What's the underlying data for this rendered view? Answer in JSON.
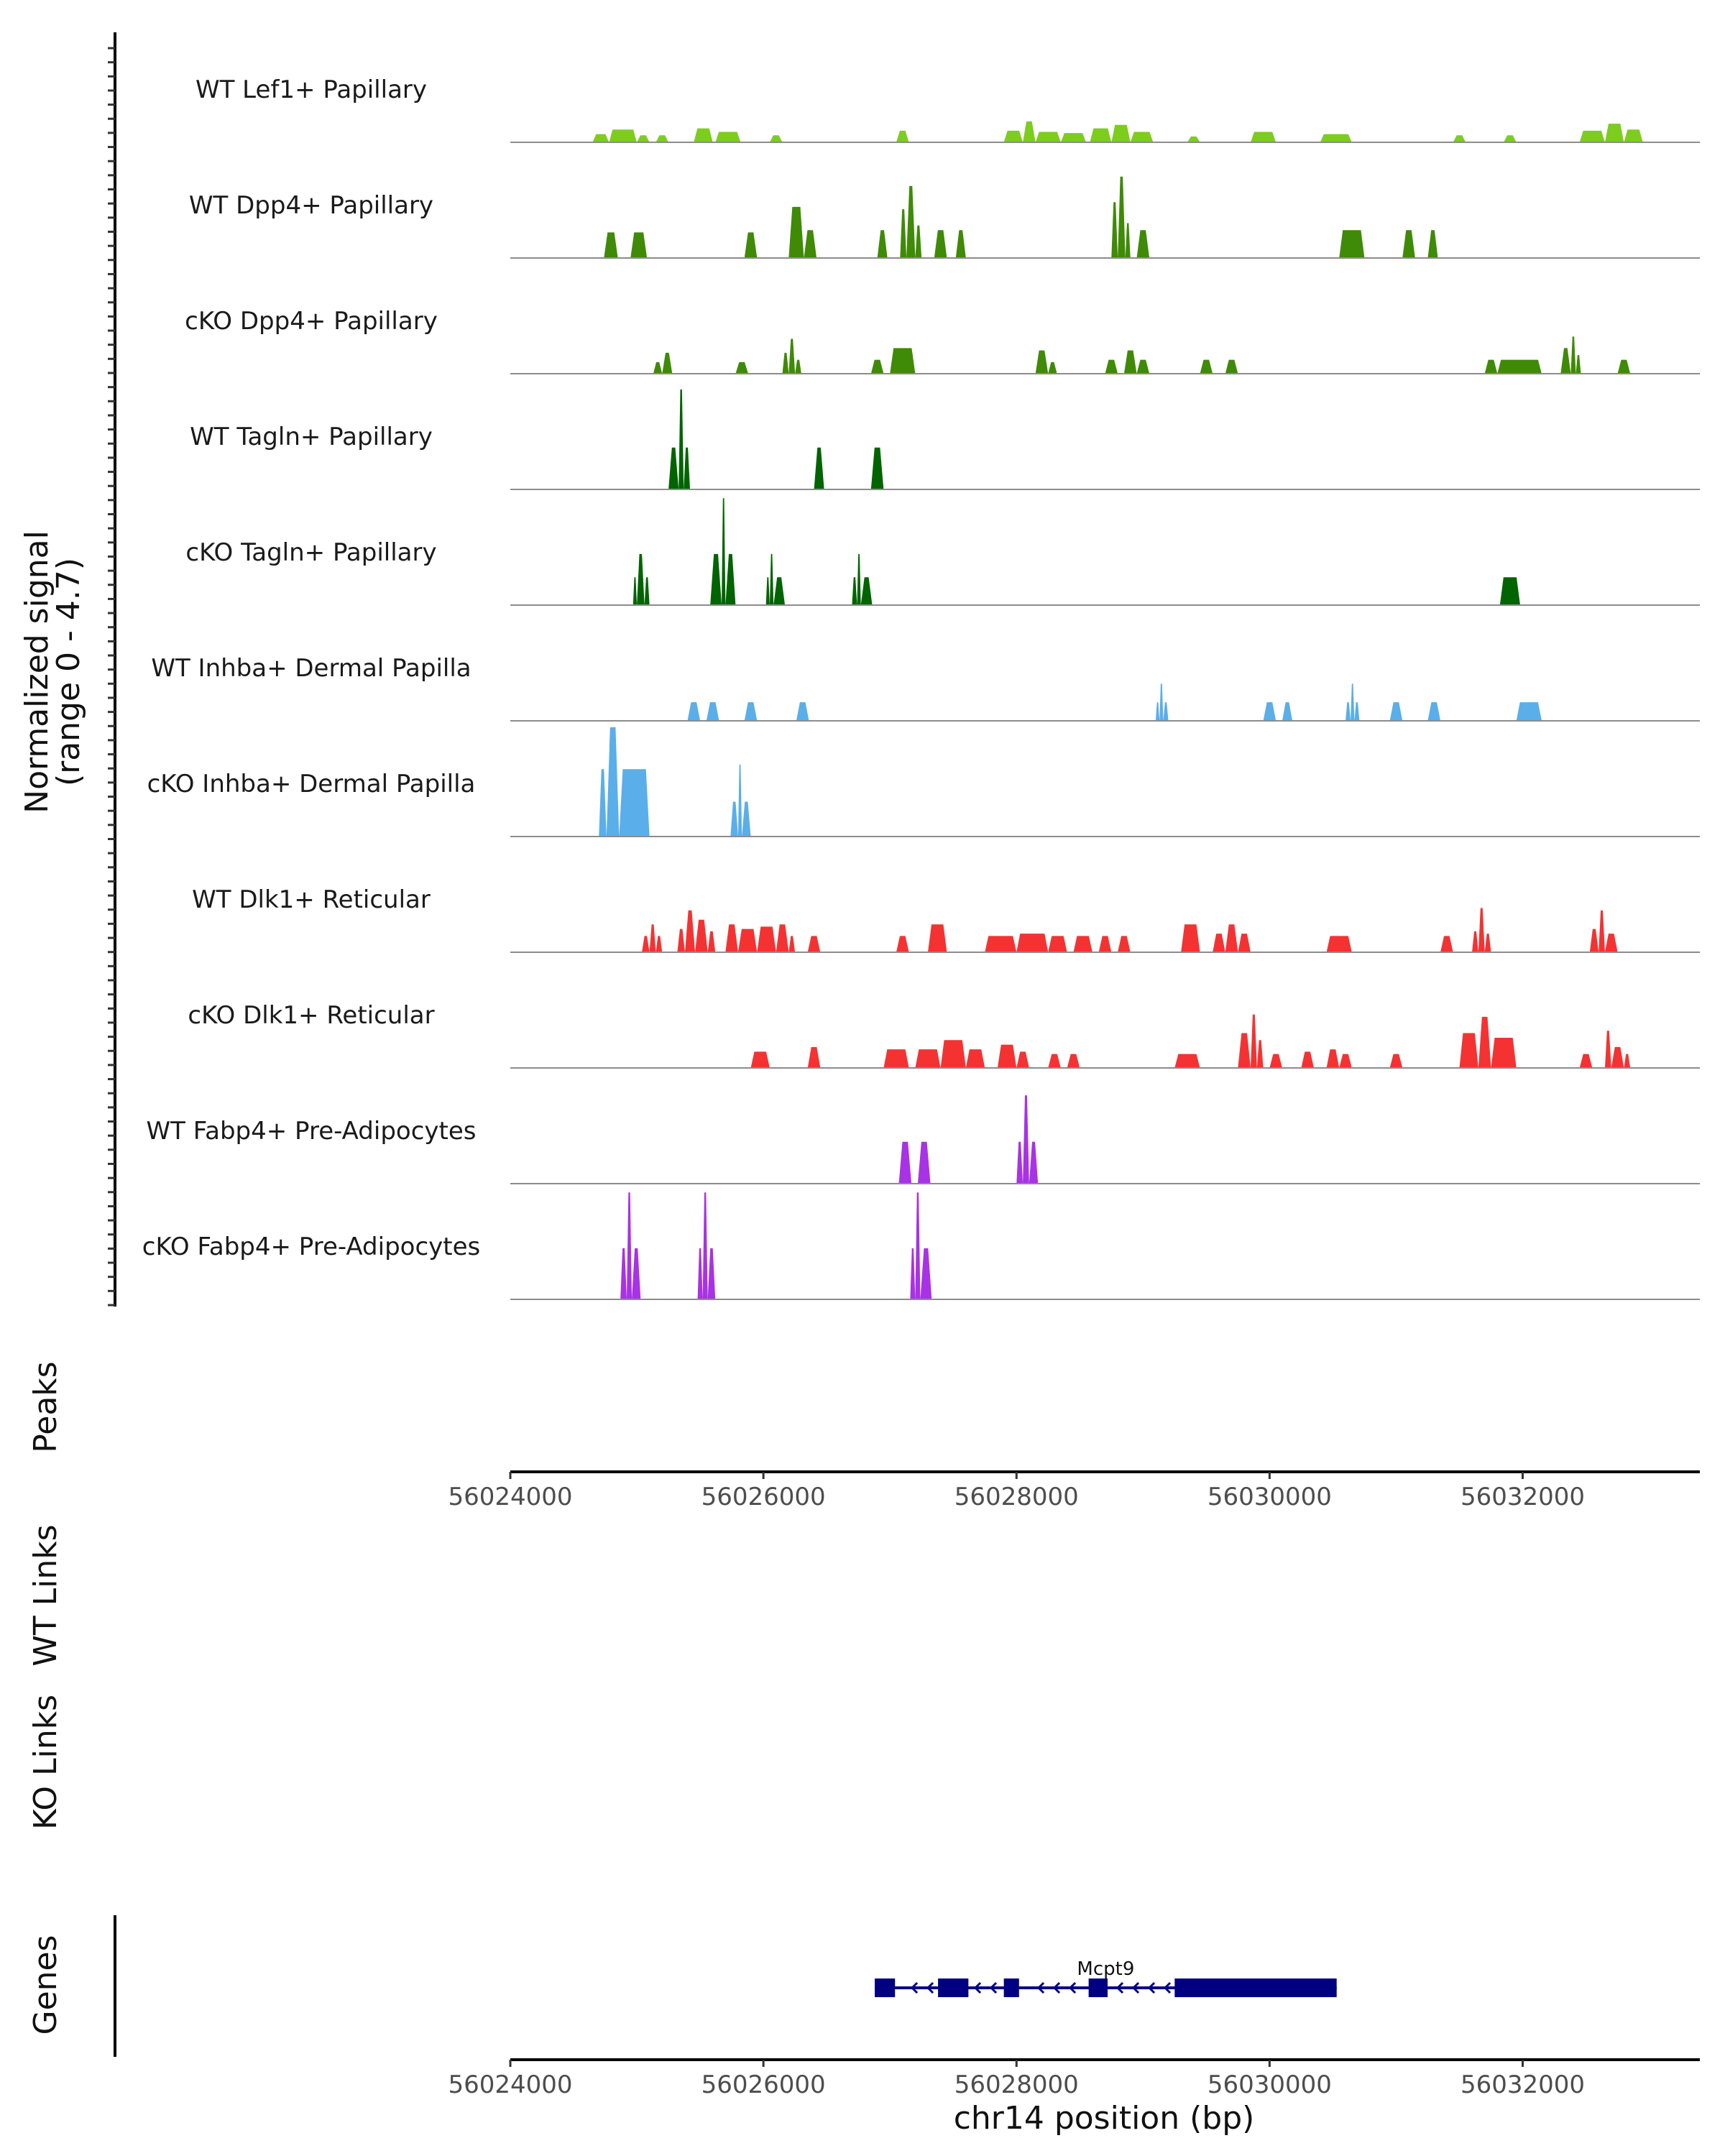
{
  "chart_data": {
    "type": "coverage",
    "region": {
      "chrom": "chr14",
      "start": 56024000,
      "end": 56033400
    },
    "ylabel": "Normalized signal",
    "ylabel_range": "(range 0 - 4.7)",
    "ymax": 4.7,
    "xlabel": "chr14 position (bp)",
    "xticks": [
      56024000,
      56026000,
      56028000,
      56030000,
      56032000
    ],
    "xtick_labels": [
      "56024000",
      "56026000",
      "56028000",
      "56030000",
      "56032000"
    ],
    "panel_labels": {
      "peaks": "Peaks",
      "wt_links": "WT Links",
      "ko_links": "KO Links",
      "genes": "Genes"
    },
    "tracks": [
      {
        "name": "WT Lef1+ Papillary",
        "color": "#7CCD1E",
        "peaks": [
          [
            56024650,
            56024780,
            0.35
          ],
          [
            56024780,
            56025000,
            0.55
          ],
          [
            56025000,
            56025100,
            0.3
          ],
          [
            56025150,
            56025250,
            0.3
          ],
          [
            56025450,
            56025600,
            0.6
          ],
          [
            56025620,
            56025820,
            0.45
          ],
          [
            56026050,
            56026150,
            0.3
          ],
          [
            56027050,
            56027150,
            0.5
          ],
          [
            56027900,
            56028050,
            0.5
          ],
          [
            56028050,
            56028150,
            0.9
          ],
          [
            56028150,
            56028350,
            0.45
          ],
          [
            56028350,
            56028550,
            0.4
          ],
          [
            56028580,
            56028750,
            0.6
          ],
          [
            56028750,
            56028900,
            0.75
          ],
          [
            56028900,
            56029080,
            0.45
          ],
          [
            56029350,
            56029450,
            0.25
          ],
          [
            56029850,
            56030050,
            0.45
          ],
          [
            56030400,
            56030650,
            0.35
          ],
          [
            56031450,
            56031550,
            0.3
          ],
          [
            56031850,
            56031950,
            0.3
          ],
          [
            56032450,
            56032650,
            0.5
          ],
          [
            56032650,
            56032800,
            0.8
          ],
          [
            56032800,
            56032950,
            0.55
          ]
        ]
      },
      {
        "name": "WT Dpp4+ Papillary",
        "color": "#3F8A06",
        "peaks": [
          [
            56024740,
            56024850,
            1.1
          ],
          [
            56024950,
            56025080,
            1.1
          ],
          [
            56025850,
            56025950,
            1.1
          ],
          [
            56026200,
            56026320,
            2.2
          ],
          [
            56026320,
            56026420,
            1.2
          ],
          [
            56026900,
            56026980,
            1.2
          ],
          [
            56027080,
            56027130,
            2.1
          ],
          [
            56027130,
            56027200,
            3.1
          ],
          [
            56027200,
            56027250,
            1.4
          ],
          [
            56027350,
            56027450,
            1.2
          ],
          [
            56027520,
            56027600,
            1.2
          ],
          [
            56028750,
            56028800,
            2.4
          ],
          [
            56028800,
            56028860,
            3.5
          ],
          [
            56028860,
            56028900,
            1.5
          ],
          [
            56028950,
            56029050,
            1.2
          ],
          [
            56030550,
            56030750,
            1.2
          ],
          [
            56031050,
            56031150,
            1.2
          ],
          [
            56031250,
            56031330,
            1.2
          ]
        ]
      },
      {
        "name": "cKO Dpp4+ Papillary",
        "color": "#3F8A06",
        "peaks": [
          [
            56025130,
            56025200,
            0.5
          ],
          [
            56025200,
            56025280,
            0.9
          ],
          [
            56025780,
            56025880,
            0.5
          ],
          [
            56026150,
            56026200,
            0.9
          ],
          [
            56026200,
            56026250,
            1.5
          ],
          [
            56026250,
            56026300,
            0.6
          ],
          [
            56026850,
            56026950,
            0.6
          ],
          [
            56027000,
            56027200,
            1.1
          ],
          [
            56028150,
            56028250,
            1.0
          ],
          [
            56028250,
            56028320,
            0.5
          ],
          [
            56028700,
            56028800,
            0.6
          ],
          [
            56028850,
            56028950,
            1.0
          ],
          [
            56028950,
            56029050,
            0.6
          ],
          [
            56029450,
            56029550,
            0.6
          ],
          [
            56029650,
            56029750,
            0.6
          ],
          [
            56031700,
            56031800,
            0.6
          ],
          [
            56031800,
            56032150,
            0.6
          ],
          [
            56032300,
            56032380,
            1.1
          ],
          [
            56032380,
            56032420,
            1.6
          ],
          [
            56032420,
            56032460,
            0.8
          ],
          [
            56032750,
            56032850,
            0.6
          ]
        ]
      },
      {
        "name": "WT Tagln+ Papillary",
        "color": "#006400",
        "peaks": [
          [
            56025250,
            56025330,
            1.8
          ],
          [
            56025330,
            56025370,
            4.3
          ],
          [
            56025370,
            56025420,
            1.8
          ],
          [
            56026400,
            56026480,
            1.8
          ],
          [
            56026850,
            56026950,
            1.8
          ]
        ]
      },
      {
        "name": "cKO Tagln+ Papillary",
        "color": "#006400",
        "peaks": [
          [
            56024970,
            56025000,
            1.2
          ],
          [
            56025000,
            56025060,
            2.2
          ],
          [
            56025060,
            56025100,
            1.2
          ],
          [
            56025580,
            56025670,
            2.2
          ],
          [
            56025670,
            56025700,
            4.6
          ],
          [
            56025700,
            56025780,
            2.2
          ],
          [
            56026020,
            56026050,
            1.2
          ],
          [
            56026050,
            56026080,
            2.2
          ],
          [
            56026080,
            56026170,
            1.2
          ],
          [
            56026700,
            56026740,
            1.2
          ],
          [
            56026740,
            56026770,
            2.2
          ],
          [
            56026770,
            56026860,
            1.2
          ],
          [
            56031820,
            56031980,
            1.2
          ]
        ]
      },
      {
        "name": "WT Inhba+ Dermal Papilla",
        "color": "#5AAEEA",
        "peaks": [
          [
            56025400,
            56025500,
            0.8
          ],
          [
            56025550,
            56025650,
            0.8
          ],
          [
            56025850,
            56025950,
            0.8
          ],
          [
            56026260,
            56026360,
            0.8
          ],
          [
            56029100,
            56029130,
            0.8
          ],
          [
            56029130,
            56029160,
            1.6
          ],
          [
            56029160,
            56029200,
            0.8
          ],
          [
            56029950,
            56030050,
            0.8
          ],
          [
            56030100,
            56030180,
            0.8
          ],
          [
            56030600,
            56030640,
            0.8
          ],
          [
            56030640,
            56030670,
            1.6
          ],
          [
            56030670,
            56030710,
            0.8
          ],
          [
            56030950,
            56031050,
            0.8
          ],
          [
            56031250,
            56031350,
            0.8
          ],
          [
            56031950,
            56032150,
            0.8
          ]
        ]
      },
      {
        "name": "cKO Inhba+ Dermal Papilla",
        "color": "#5AAEEA",
        "peaks": [
          [
            56024700,
            56024760,
            2.9
          ],
          [
            56024760,
            56024860,
            4.7
          ],
          [
            56024860,
            56025100,
            2.9
          ],
          [
            56025740,
            56025800,
            1.5
          ],
          [
            56025800,
            56025830,
            3.1
          ],
          [
            56025830,
            56025900,
            1.5
          ]
        ]
      },
      {
        "name": "WT Dlk1+ Reticular",
        "color": "#F53232",
        "peaks": [
          [
            56025040,
            56025100,
            0.7
          ],
          [
            56025100,
            56025150,
            1.2
          ],
          [
            56025150,
            56025200,
            0.7
          ],
          [
            56025320,
            56025380,
            1.0
          ],
          [
            56025380,
            56025460,
            1.8
          ],
          [
            56025460,
            56025560,
            1.4
          ],
          [
            56025560,
            56025620,
            0.9
          ],
          [
            56025700,
            56025800,
            1.2
          ],
          [
            56025800,
            56025950,
            1.0
          ],
          [
            56025950,
            56026100,
            1.1
          ],
          [
            56026100,
            56026200,
            1.2
          ],
          [
            56026200,
            56026250,
            0.7
          ],
          [
            56026350,
            56026450,
            0.7
          ],
          [
            56027050,
            56027150,
            0.7
          ],
          [
            56027300,
            56027450,
            1.2
          ],
          [
            56027750,
            56028000,
            0.7
          ],
          [
            56028000,
            56028250,
            0.8
          ],
          [
            56028250,
            56028400,
            0.7
          ],
          [
            56028450,
            56028600,
            0.7
          ],
          [
            56028650,
            56028750,
            0.7
          ],
          [
            56028800,
            56028900,
            0.7
          ],
          [
            56029300,
            56029450,
            1.2
          ],
          [
            56029550,
            56029650,
            0.8
          ],
          [
            56029650,
            56029750,
            1.2
          ],
          [
            56029750,
            56029850,
            0.8
          ],
          [
            56030450,
            56030650,
            0.7
          ],
          [
            56031350,
            56031450,
            0.7
          ],
          [
            56031600,
            56031650,
            0.9
          ],
          [
            56031650,
            56031700,
            1.9
          ],
          [
            56031700,
            56031750,
            0.8
          ],
          [
            56032530,
            56032600,
            1.0
          ],
          [
            56032600,
            56032650,
            1.8
          ],
          [
            56032650,
            56032750,
            0.8
          ]
        ]
      },
      {
        "name": "cKO Dlk1+ Reticular",
        "color": "#F53232",
        "peaks": [
          [
            56025900,
            56026050,
            0.7
          ],
          [
            56026350,
            56026450,
            0.9
          ],
          [
            56026950,
            56027150,
            0.8
          ],
          [
            56027200,
            56027400,
            0.8
          ],
          [
            56027400,
            56027600,
            1.2
          ],
          [
            56027600,
            56027750,
            0.8
          ],
          [
            56027850,
            56028000,
            1.0
          ],
          [
            56028000,
            56028100,
            0.7
          ],
          [
            56028250,
            56028350,
            0.6
          ],
          [
            56028400,
            56028500,
            0.6
          ],
          [
            56029250,
            56029450,
            0.6
          ],
          [
            56029750,
            56029850,
            1.5
          ],
          [
            56029850,
            56029900,
            2.3
          ],
          [
            56029900,
            56029950,
            1.2
          ],
          [
            56030000,
            56030100,
            0.6
          ],
          [
            56030250,
            56030350,
            0.7
          ],
          [
            56030450,
            56030550,
            0.8
          ],
          [
            56030550,
            56030650,
            0.6
          ],
          [
            56030950,
            56031050,
            0.6
          ],
          [
            56031500,
            56031650,
            1.5
          ],
          [
            56031650,
            56031750,
            2.2
          ],
          [
            56031750,
            56031950,
            1.3
          ],
          [
            56032450,
            56032550,
            0.6
          ],
          [
            56032650,
            56032700,
            1.6
          ],
          [
            56032700,
            56032800,
            0.9
          ],
          [
            56032800,
            56032850,
            0.6
          ]
        ]
      },
      {
        "name": "WT Fabp4+ Pre-Adipocytes",
        "color": "#A832E6",
        "peaks": [
          [
            56027070,
            56027170,
            1.8
          ],
          [
            56027220,
            56027320,
            1.8
          ],
          [
            56028000,
            56028050,
            1.8
          ],
          [
            56028050,
            56028100,
            3.8
          ],
          [
            56028100,
            56028170,
            1.8
          ]
        ]
      },
      {
        "name": "cKO Fabp4+ Pre-Adipocytes",
        "color": "#A832E6",
        "peaks": [
          [
            56024870,
            56024920,
            2.2
          ],
          [
            56024920,
            56024960,
            4.6
          ],
          [
            56024960,
            56025030,
            2.2
          ],
          [
            56025480,
            56025520,
            2.2
          ],
          [
            56025520,
            56025560,
            4.6
          ],
          [
            56025560,
            56025620,
            2.2
          ],
          [
            56027160,
            56027200,
            2.2
          ],
          [
            56027200,
            56027240,
            4.6
          ],
          [
            56027240,
            56027330,
            2.2
          ]
        ]
      }
    ],
    "genes": [
      {
        "name": "Mcpt9",
        "strand": "-",
        "start": 56026880,
        "end": 56030530,
        "exons": [
          [
            56026880,
            56027040
          ],
          [
            56027380,
            56027620
          ],
          [
            56027900,
            56028020
          ],
          [
            56028570,
            56028720
          ],
          [
            56029250,
            56030530
          ]
        ]
      }
    ]
  }
}
